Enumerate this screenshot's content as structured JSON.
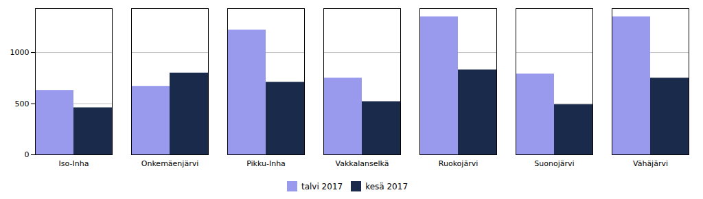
{
  "chart_data": {
    "type": "bar",
    "categories": [
      "Iso-Inha",
      "Onkemäenjärvi",
      "Pikku-Inha",
      "Vakkalanselkä",
      "Ruokojärvi",
      "Suonojärvi",
      "Vähäjärvi"
    ],
    "series": [
      {
        "name": "talvi 2017",
        "color": "#9999ee",
        "values": [
          630,
          670,
          1220,
          750,
          1350,
          790,
          1350
        ]
      },
      {
        "name": "kesä 2017",
        "color": "#1a2a4a",
        "values": [
          460,
          800,
          710,
          520,
          830,
          490,
          750
        ]
      }
    ],
    "ylim": [
      0,
      1430
    ],
    "yticks": [
      0,
      500,
      1000
    ],
    "grid": true,
    "legend": "bottom"
  }
}
